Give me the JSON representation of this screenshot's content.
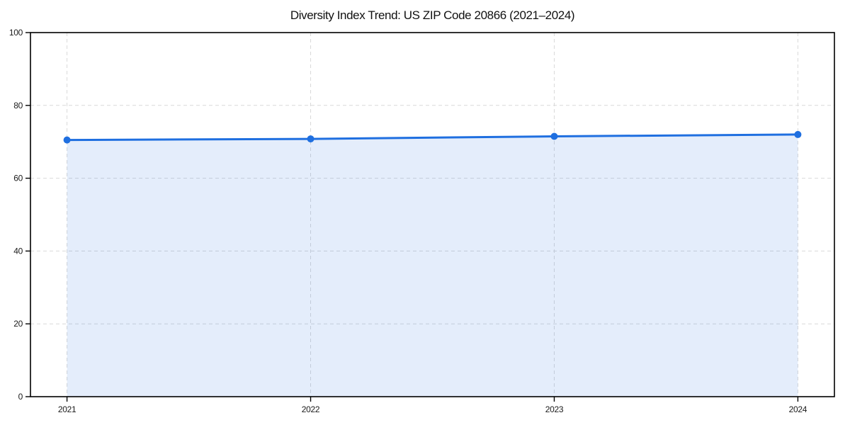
{
  "chart_data": {
    "type": "line",
    "title": "Diversity Index Trend: US ZIP Code 20866 (2021–2024)",
    "x": [
      2021,
      2022,
      2023,
      2024
    ],
    "xticklabels": [
      "2021",
      "2022",
      "2023",
      "2024"
    ],
    "series": [
      {
        "name": "Diversity Index",
        "values": [
          70.5,
          70.8,
          71.5,
          72.0
        ]
      }
    ],
    "xlabel": "",
    "ylabel": "",
    "xlim": [
      2020.85,
      2024.15
    ],
    "ylim": [
      0,
      100
    ],
    "yticks": [
      0,
      20,
      40,
      60,
      80,
      100
    ],
    "grid": true,
    "grid_style": "dashed",
    "legend": false,
    "area_fill": true,
    "style": {
      "line_color": "#1f6fe0",
      "marker_color": "#1f6fe0",
      "marker_shape": "circle",
      "marker_size": 5,
      "line_width": 3,
      "area_opacity": 0.12,
      "grid_color": "#d9d9d9",
      "grid_dash": "5 4",
      "axis_color": "#000000",
      "background": "#ffffff",
      "text_color": "#1a1a1a"
    }
  }
}
